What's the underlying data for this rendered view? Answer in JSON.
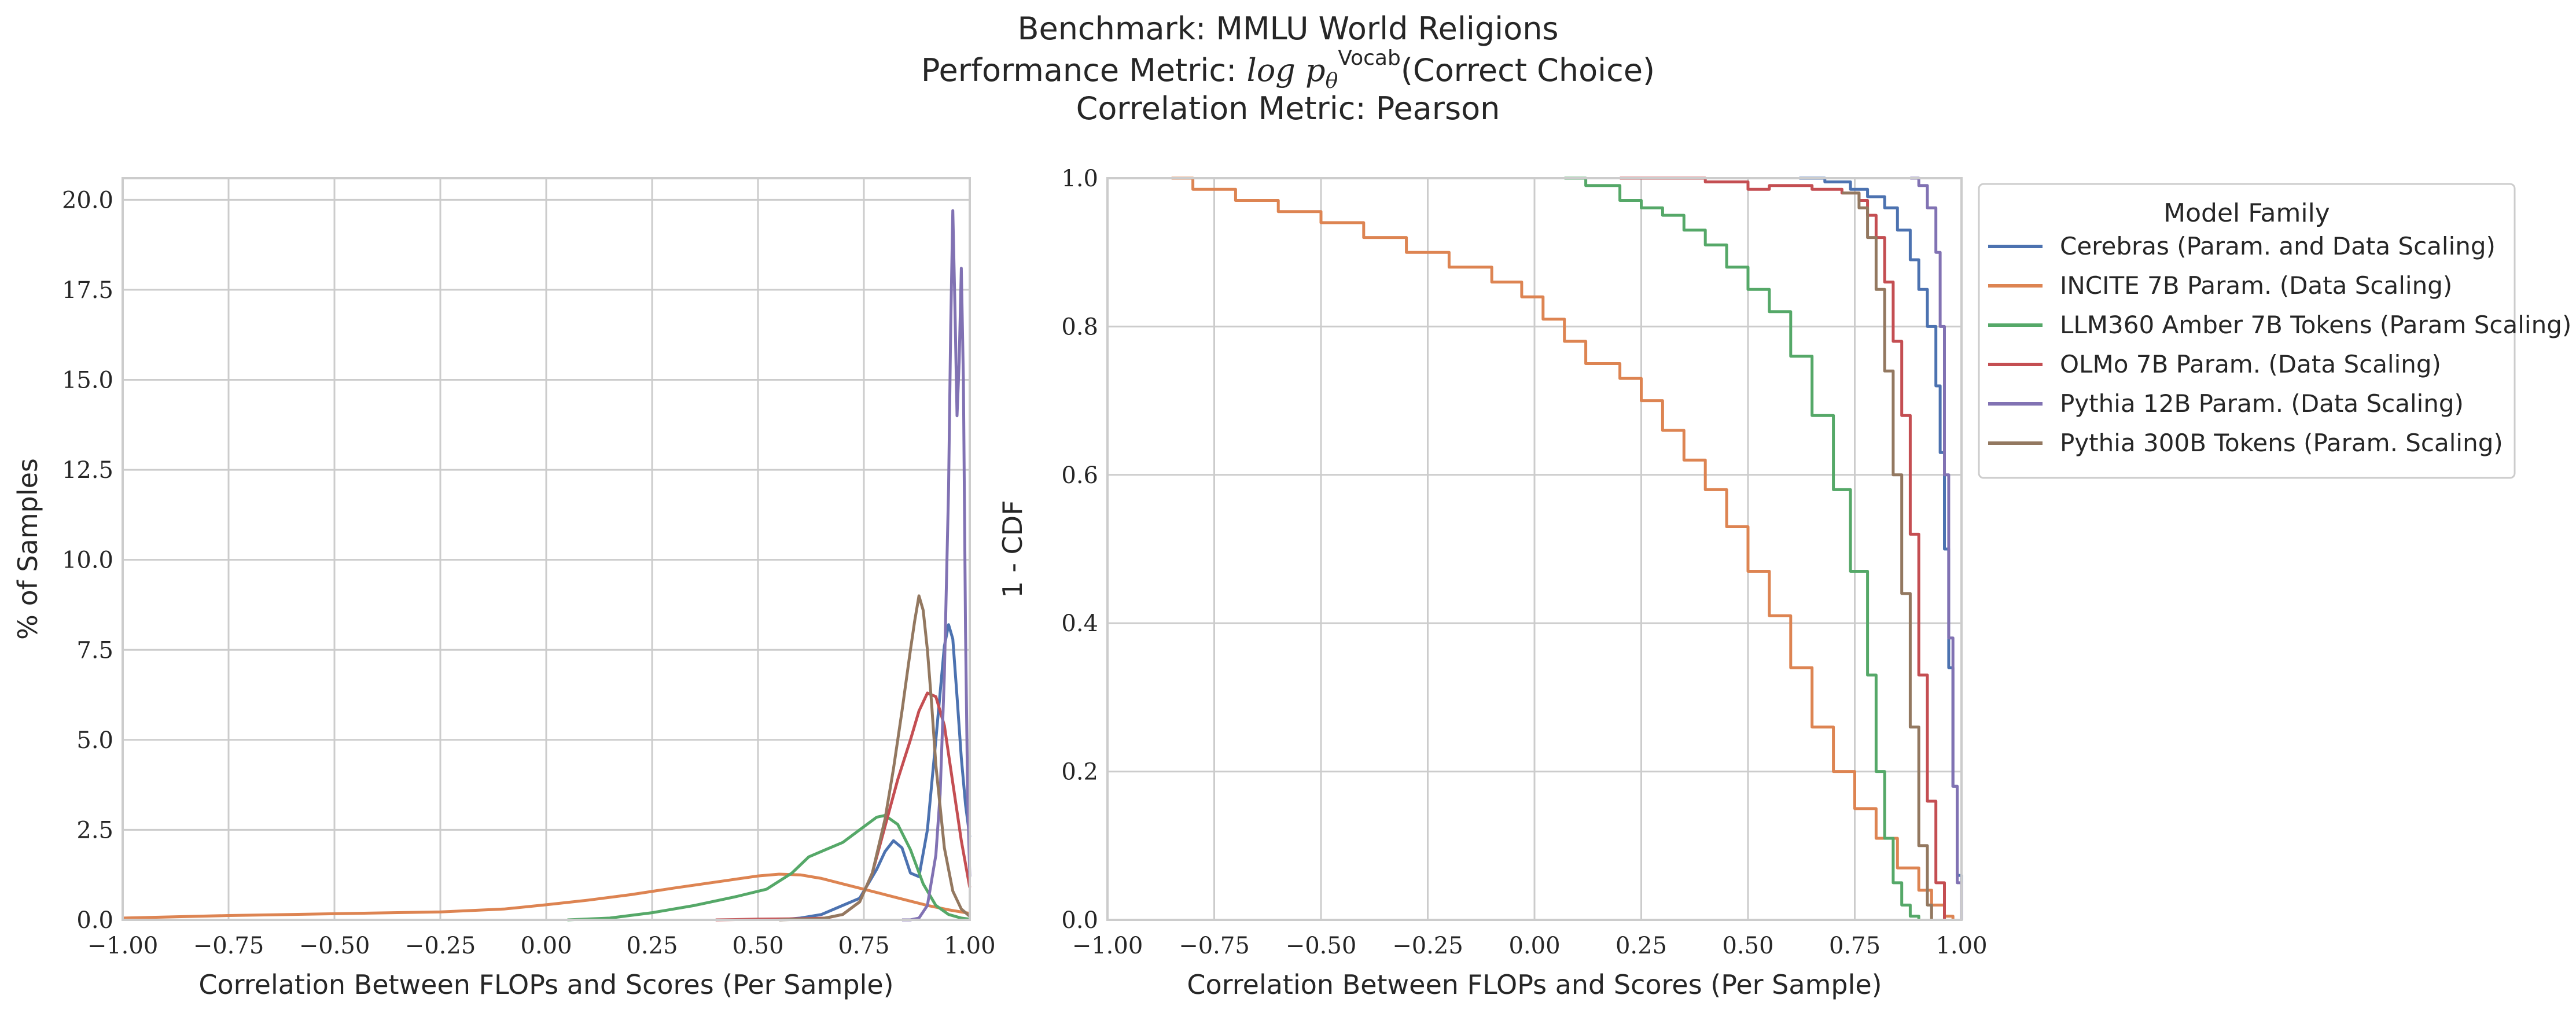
{
  "figure": {
    "title_line1": "Benchmark: MMLU World Religions",
    "title_line2_prefix": "Performance Metric: ",
    "title_line2_math": "log p",
    "title_line2_sub": "θ",
    "title_line2_sup": "Vocab",
    "title_line2_suffix": "(Correct Choice)",
    "title_line3": "Correlation Metric: Pearson"
  },
  "chart_data": [
    {
      "type": "line",
      "subtype": "kde",
      "xlabel": "Correlation Between FLOPs and Scores (Per Sample)",
      "ylabel": "% of Samples",
      "xlim": [
        -1.0,
        1.0
      ],
      "ylim": [
        0,
        20.6
      ],
      "xticks": [
        "−1.00",
        "−0.75",
        "−0.50",
        "−0.25",
        "0.00",
        "0.25",
        "0.50",
        "0.75",
        "1.00"
      ],
      "xtick_values": [
        -1.0,
        -0.75,
        -0.5,
        -0.25,
        0.0,
        0.25,
        0.5,
        0.75,
        1.0
      ],
      "yticks": [
        "0.0",
        "2.5",
        "5.0",
        "7.5",
        "10.0",
        "12.5",
        "15.0",
        "17.5",
        "20.0"
      ],
      "ytick_values": [
        0,
        2.5,
        5.0,
        7.5,
        10.0,
        12.5,
        15.0,
        17.5,
        20.0
      ],
      "grid": true,
      "series": [
        {
          "name": "Cerebras (Param. and Data Scaling)",
          "color": "#4c72b0",
          "x": [
            0.55,
            0.6,
            0.65,
            0.7,
            0.74,
            0.78,
            0.8,
            0.82,
            0.84,
            0.86,
            0.88,
            0.9,
            0.92,
            0.94,
            0.95,
            0.96,
            0.97,
            0.98,
            0.99,
            1.0
          ],
          "y": [
            0.0,
            0.05,
            0.15,
            0.4,
            0.6,
            1.4,
            1.9,
            2.2,
            2.0,
            1.3,
            1.2,
            2.5,
            5.0,
            7.6,
            8.2,
            7.8,
            6.2,
            4.5,
            3.2,
            2.3
          ]
        },
        {
          "name": "INCITE 7B Param. (Data Scaling)",
          "color": "#dd8452",
          "x": [
            -1.0,
            -0.75,
            -0.5,
            -0.25,
            -0.1,
            0.0,
            0.1,
            0.2,
            0.3,
            0.4,
            0.5,
            0.55,
            0.6,
            0.65,
            0.7,
            0.75,
            0.8,
            0.85,
            0.9,
            0.95,
            1.0
          ],
          "y": [
            0.05,
            0.12,
            0.17,
            0.22,
            0.3,
            0.42,
            0.55,
            0.7,
            0.88,
            1.05,
            1.22,
            1.27,
            1.25,
            1.15,
            1.0,
            0.85,
            0.7,
            0.55,
            0.4,
            0.28,
            0.18
          ]
        },
        {
          "name": "LLM360 Amber 7B Tokens (Param Scaling)",
          "color": "#55a868",
          "x": [
            0.05,
            0.15,
            0.25,
            0.35,
            0.45,
            0.52,
            0.58,
            0.62,
            0.66,
            0.7,
            0.74,
            0.78,
            0.8,
            0.83,
            0.86,
            0.89,
            0.92,
            0.95,
            0.98,
            1.0
          ],
          "y": [
            0.0,
            0.05,
            0.2,
            0.4,
            0.65,
            0.85,
            1.3,
            1.75,
            1.95,
            2.15,
            2.5,
            2.85,
            2.9,
            2.65,
            1.95,
            1.0,
            0.4,
            0.15,
            0.05,
            0.02
          ]
        },
        {
          "name": "OLMo 7B Param. (Data Scaling)",
          "color": "#c44e52",
          "x": [
            0.4,
            0.5,
            0.6,
            0.66,
            0.7,
            0.74,
            0.77,
            0.8,
            0.83,
            0.86,
            0.88,
            0.9,
            0.92,
            0.94,
            0.96,
            0.98,
            1.0
          ],
          "y": [
            0.0,
            0.02,
            0.03,
            0.05,
            0.15,
            0.5,
            1.3,
            2.6,
            3.9,
            5.0,
            5.8,
            6.3,
            6.2,
            5.4,
            3.8,
            2.2,
            0.9
          ]
        },
        {
          "name": "Pythia 12B Param. (Data Scaling)",
          "color": "#8172b3",
          "x": [
            0.84,
            0.86,
            0.88,
            0.9,
            0.92,
            0.93,
            0.94,
            0.95,
            0.955,
            0.96,
            0.965,
            0.97,
            0.975,
            0.98,
            0.985,
            0.99,
            0.995,
            1.0
          ],
          "y": [
            0.0,
            0.0,
            0.05,
            0.4,
            1.8,
            3.5,
            6.8,
            12.0,
            16.5,
            19.7,
            17.0,
            14.0,
            15.5,
            18.1,
            15.0,
            8.0,
            3.5,
            1.2
          ]
        },
        {
          "name": "Pythia 300B Tokens (Param. Scaling)",
          "color": "#937860",
          "x": [
            0.55,
            0.65,
            0.7,
            0.74,
            0.77,
            0.8,
            0.82,
            0.84,
            0.86,
            0.87,
            0.88,
            0.89,
            0.9,
            0.91,
            0.92,
            0.94,
            0.96,
            0.98,
            1.0
          ],
          "y": [
            0.0,
            0.03,
            0.15,
            0.5,
            1.3,
            2.8,
            4.2,
            5.8,
            7.5,
            8.3,
            9.0,
            8.6,
            7.5,
            6.0,
            4.3,
            2.0,
            0.8,
            0.3,
            0.1
          ]
        }
      ]
    },
    {
      "type": "line",
      "subtype": "step",
      "xlabel": "Correlation Between FLOPs and Scores (Per Sample)",
      "ylabel": "1 - CDF",
      "xlim": [
        -1.0,
        1.0
      ],
      "ylim": [
        0.0,
        1.0
      ],
      "xticks": [
        "−1.00",
        "−0.75",
        "−0.50",
        "−0.25",
        "0.00",
        "0.25",
        "0.50",
        "0.75",
        "1.00"
      ],
      "xtick_values": [
        -1.0,
        -0.75,
        -0.5,
        -0.25,
        0.0,
        0.25,
        0.5,
        0.75,
        1.0
      ],
      "yticks": [
        "0.0",
        "0.2",
        "0.4",
        "0.6",
        "0.8",
        "1.0"
      ],
      "ytick_values": [
        0.0,
        0.2,
        0.4,
        0.6,
        0.8,
        1.0
      ],
      "grid": true,
      "legend": {
        "title": "Model Family",
        "placement": "outside-right-top"
      },
      "series": [
        {
          "name": "Cerebras (Param. and Data Scaling)",
          "color": "#4c72b0",
          "x": [
            0.62,
            0.68,
            0.74,
            0.78,
            0.82,
            0.85,
            0.88,
            0.9,
            0.92,
            0.94,
            0.95,
            0.96,
            0.97,
            0.98,
            0.99,
            1.0
          ],
          "y": [
            1.0,
            0.995,
            0.985,
            0.975,
            0.96,
            0.93,
            0.89,
            0.85,
            0.8,
            0.72,
            0.63,
            0.5,
            0.34,
            0.18,
            0.06,
            0.0
          ]
        },
        {
          "name": "INCITE 7B Param. (Data Scaling)",
          "color": "#dd8452",
          "x": [
            -0.85,
            -0.8,
            -0.7,
            -0.6,
            -0.5,
            -0.4,
            -0.3,
            -0.2,
            -0.1,
            -0.03,
            0.02,
            0.07,
            0.12,
            0.2,
            0.25,
            0.3,
            0.35,
            0.4,
            0.45,
            0.5,
            0.55,
            0.6,
            0.65,
            0.7,
            0.75,
            0.8,
            0.85,
            0.9,
            0.93,
            0.96,
            0.98
          ],
          "y": [
            1.0,
            0.985,
            0.97,
            0.955,
            0.94,
            0.92,
            0.9,
            0.88,
            0.86,
            0.84,
            0.81,
            0.78,
            0.75,
            0.73,
            0.7,
            0.66,
            0.62,
            0.58,
            0.53,
            0.47,
            0.41,
            0.34,
            0.26,
            0.2,
            0.15,
            0.11,
            0.07,
            0.04,
            0.02,
            0.005,
            0.0
          ]
        },
        {
          "name": "LLM360 Amber 7B Tokens (Param Scaling)",
          "color": "#55a868",
          "x": [
            0.07,
            0.12,
            0.2,
            0.25,
            0.3,
            0.35,
            0.4,
            0.45,
            0.5,
            0.55,
            0.6,
            0.65,
            0.7,
            0.74,
            0.78,
            0.8,
            0.82,
            0.84,
            0.86,
            0.88,
            0.9
          ],
          "y": [
            1.0,
            0.99,
            0.97,
            0.96,
            0.95,
            0.93,
            0.91,
            0.88,
            0.85,
            0.82,
            0.76,
            0.68,
            0.58,
            0.47,
            0.33,
            0.2,
            0.11,
            0.05,
            0.02,
            0.005,
            0.0
          ]
        },
        {
          "name": "OLMo 7B Param. (Data Scaling)",
          "color": "#c44e52",
          "x": [
            0.2,
            0.4,
            0.5,
            0.55,
            0.65,
            0.72,
            0.76,
            0.78,
            0.8,
            0.82,
            0.84,
            0.86,
            0.88,
            0.9,
            0.92,
            0.94,
            0.96
          ],
          "y": [
            1.0,
            0.995,
            0.985,
            0.99,
            0.985,
            0.98,
            0.97,
            0.95,
            0.92,
            0.86,
            0.78,
            0.68,
            0.52,
            0.33,
            0.16,
            0.05,
            0.0
          ]
        },
        {
          "name": "Pythia 12B Param. (Data Scaling)",
          "color": "#8172b3",
          "x": [
            0.88,
            0.9,
            0.92,
            0.94,
            0.95,
            0.96,
            0.97,
            0.98,
            0.99,
            1.0
          ],
          "y": [
            1.0,
            0.99,
            0.96,
            0.9,
            0.8,
            0.6,
            0.38,
            0.18,
            0.05,
            0.0
          ]
        },
        {
          "name": "Pythia 300B Tokens (Param. Scaling)",
          "color": "#937860",
          "x": [
            0.72,
            0.76,
            0.78,
            0.8,
            0.82,
            0.84,
            0.86,
            0.88,
            0.9,
            0.92,
            0.93
          ],
          "y": [
            0.98,
            0.96,
            0.92,
            0.85,
            0.74,
            0.6,
            0.44,
            0.26,
            0.1,
            0.02,
            0.0
          ]
        }
      ]
    }
  ]
}
